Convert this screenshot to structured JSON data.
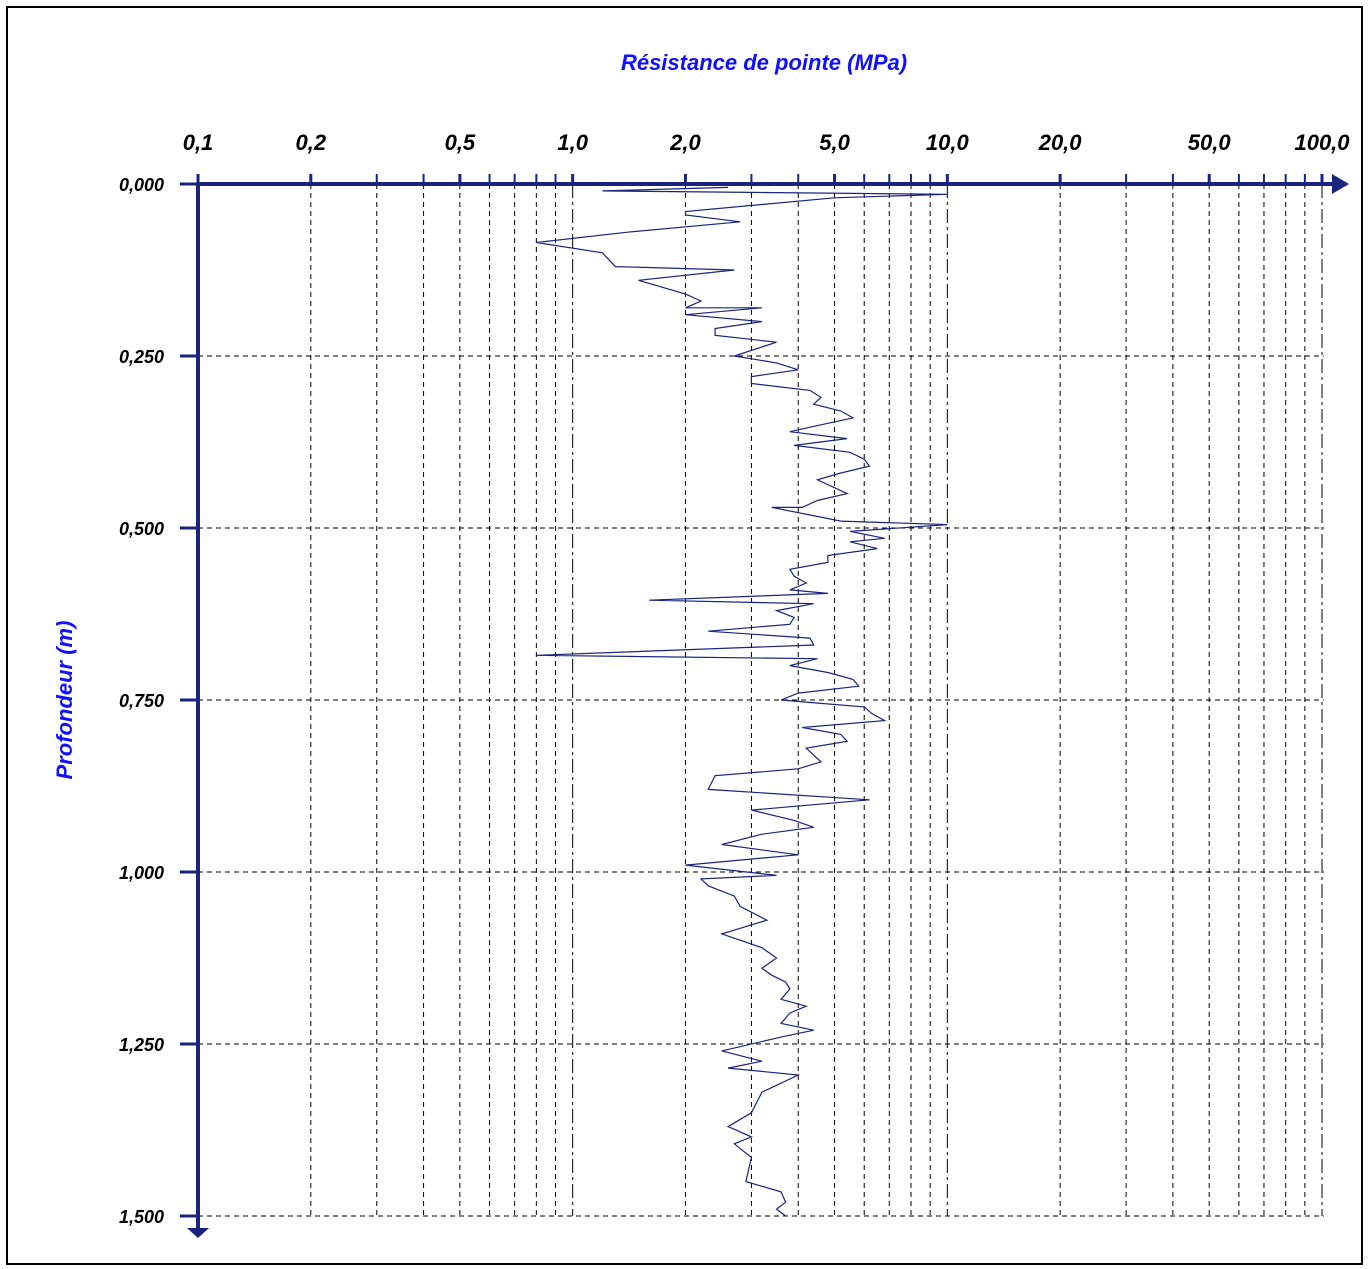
{
  "chart_data": {
    "type": "line",
    "title": "",
    "xlabel": "Résistance de pointe (MPa)",
    "ylabel": "Profondeur (m)",
    "x_scale": "log",
    "xlim": [
      0.1,
      100.0
    ],
    "ylim": [
      0.0,
      1.5
    ],
    "y_inverted": true,
    "x_axis_position": "top",
    "grid": true,
    "legend": "none",
    "x_tick_labels": [
      {
        "value": 0.1,
        "label": "0,1"
      },
      {
        "value": 0.2,
        "label": "0,2"
      },
      {
        "value": 0.5,
        "label": "0,5"
      },
      {
        "value": 1.0,
        "label": "1,0"
      },
      {
        "value": 2.0,
        "label": "2,0"
      },
      {
        "value": 5.0,
        "label": "5,0"
      },
      {
        "value": 10.0,
        "label": "10,0"
      },
      {
        "value": 20.0,
        "label": "20,0"
      },
      {
        "value": 50.0,
        "label": "50,0"
      },
      {
        "value": 100.0,
        "label": "100,0"
      }
    ],
    "y_tick_labels": [
      {
        "value": 0.0,
        "label": "0,000"
      },
      {
        "value": 0.25,
        "label": "0,250"
      },
      {
        "value": 0.5,
        "label": "0,500"
      },
      {
        "value": 0.75,
        "label": "0,750"
      },
      {
        "value": 1.0,
        "label": "1,000"
      },
      {
        "value": 1.25,
        "label": "1,250"
      },
      {
        "value": 1.5,
        "label": "1,500"
      }
    ],
    "colors": {
      "axis": "#1a237e",
      "series": "#1a237e",
      "title_text": "#1010ff",
      "grid": "#000000"
    },
    "series": [
      {
        "points": [
          [
            2.6,
            0.005
          ],
          [
            1.2,
            0.01
          ],
          [
            10.0,
            0.015
          ],
          [
            5.0,
            0.02
          ],
          [
            2.0,
            0.04
          ],
          [
            2.0,
            0.045
          ],
          [
            2.8,
            0.055
          ],
          [
            1.4,
            0.07
          ],
          [
            0.8,
            0.085
          ],
          [
            1.2,
            0.1
          ],
          [
            1.3,
            0.12
          ],
          [
            2.7,
            0.125
          ],
          [
            1.5,
            0.14
          ],
          [
            2.0,
            0.16
          ],
          [
            2.2,
            0.17
          ],
          [
            2.0,
            0.18
          ],
          [
            3.2,
            0.18
          ],
          [
            2.0,
            0.19
          ],
          [
            3.2,
            0.2
          ],
          [
            2.4,
            0.21
          ],
          [
            2.4,
            0.22
          ],
          [
            3.5,
            0.23
          ],
          [
            2.7,
            0.25
          ],
          [
            3.5,
            0.26
          ],
          [
            4.0,
            0.27
          ],
          [
            3.0,
            0.28
          ],
          [
            3.0,
            0.29
          ],
          [
            4.3,
            0.3
          ],
          [
            4.6,
            0.31
          ],
          [
            4.4,
            0.32
          ],
          [
            5.2,
            0.33
          ],
          [
            5.6,
            0.34
          ],
          [
            4.6,
            0.35
          ],
          [
            3.8,
            0.36
          ],
          [
            5.4,
            0.37
          ],
          [
            3.9,
            0.38
          ],
          [
            5.5,
            0.39
          ],
          [
            6.0,
            0.4
          ],
          [
            6.2,
            0.41
          ],
          [
            5.2,
            0.42
          ],
          [
            4.5,
            0.43
          ],
          [
            5.4,
            0.45
          ],
          [
            4.5,
            0.46
          ],
          [
            4.1,
            0.47
          ],
          [
            3.4,
            0.47
          ],
          [
            5.2,
            0.49
          ],
          [
            10.0,
            0.495
          ],
          [
            5.5,
            0.505
          ],
          [
            6.8,
            0.515
          ],
          [
            5.5,
            0.52
          ],
          [
            6.5,
            0.53
          ],
          [
            4.8,
            0.54
          ],
          [
            4.8,
            0.55
          ],
          [
            3.8,
            0.56
          ],
          [
            3.9,
            0.57
          ],
          [
            4.2,
            0.58
          ],
          [
            3.8,
            0.59
          ],
          [
            4.8,
            0.595
          ],
          [
            1.6,
            0.605
          ],
          [
            4.4,
            0.61
          ],
          [
            3.5,
            0.62
          ],
          [
            3.9,
            0.63
          ],
          [
            3.8,
            0.64
          ],
          [
            2.3,
            0.65
          ],
          [
            4.3,
            0.66
          ],
          [
            4.4,
            0.67
          ],
          [
            0.8,
            0.685
          ],
          [
            4.5,
            0.69
          ],
          [
            3.8,
            0.7
          ],
          [
            4.8,
            0.71
          ],
          [
            5.6,
            0.72
          ],
          [
            5.8,
            0.73
          ],
          [
            4.0,
            0.74
          ],
          [
            3.6,
            0.75
          ],
          [
            4.6,
            0.755
          ],
          [
            6.0,
            0.76
          ],
          [
            6.3,
            0.77
          ],
          [
            6.8,
            0.78
          ],
          [
            4.1,
            0.79
          ],
          [
            5.2,
            0.8
          ],
          [
            5.4,
            0.81
          ],
          [
            4.2,
            0.82
          ],
          [
            4.6,
            0.84
          ],
          [
            4.0,
            0.85
          ],
          [
            2.4,
            0.86
          ],
          [
            2.3,
            0.88
          ],
          [
            6.2,
            0.895
          ],
          [
            3.0,
            0.91
          ],
          [
            3.9,
            0.925
          ],
          [
            4.4,
            0.935
          ],
          [
            3.2,
            0.945
          ],
          [
            2.5,
            0.96
          ],
          [
            4.0,
            0.975
          ],
          [
            2.0,
            0.99
          ],
          [
            3.5,
            1.005
          ],
          [
            2.2,
            1.01
          ],
          [
            2.3,
            1.02
          ],
          [
            2.7,
            1.035
          ],
          [
            2.8,
            1.05
          ],
          [
            3.3,
            1.07
          ],
          [
            2.5,
            1.09
          ],
          [
            3.2,
            1.11
          ],
          [
            3.5,
            1.125
          ],
          [
            3.2,
            1.14
          ],
          [
            3.4,
            1.15
          ],
          [
            3.7,
            1.16
          ],
          [
            3.8,
            1.17
          ],
          [
            3.6,
            1.185
          ],
          [
            4.2,
            1.195
          ],
          [
            3.8,
            1.205
          ],
          [
            3.6,
            1.22
          ],
          [
            4.4,
            1.23
          ],
          [
            3.6,
            1.24
          ],
          [
            2.5,
            1.26
          ],
          [
            3.2,
            1.275
          ],
          [
            2.6,
            1.285
          ],
          [
            4.0,
            1.295
          ],
          [
            3.2,
            1.32
          ],
          [
            3.0,
            1.35
          ],
          [
            2.6,
            1.37
          ],
          [
            3.0,
            1.385
          ],
          [
            2.7,
            1.395
          ],
          [
            3.0,
            1.415
          ],
          [
            2.9,
            1.45
          ],
          [
            3.6,
            1.465
          ],
          [
            3.7,
            1.48
          ],
          [
            3.5,
            1.49
          ],
          [
            3.7,
            1.5
          ]
        ]
      }
    ]
  }
}
